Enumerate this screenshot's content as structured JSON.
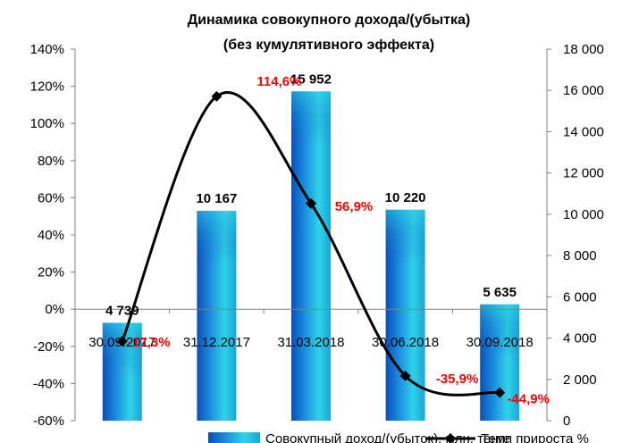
{
  "chart_data": {
    "type": "bar",
    "title_line1": "Динамика совокупного дохода/(убытка)",
    "title_line2": "(без кумулятивного эффекта)",
    "categories": [
      "30.09.2017",
      "31.12.2017",
      "31.03.2018",
      "30.06.2018",
      "30.09.2018"
    ],
    "bar_series": {
      "name": "Совокупный доход/(убыток), млн. тенге",
      "values": [
        4739,
        10167,
        15952,
        10220,
        5635
      ],
      "labels": [
        "4 739",
        "10 167",
        "15 952",
        "10 220",
        "5 635"
      ],
      "axis": "right",
      "color": "#1a6fd6"
    },
    "line_series": {
      "name": "Темп прироста %",
      "values": [
        -17.3,
        114.6,
        56.9,
        -35.9,
        -44.9
      ],
      "labels": [
        "-17,3%",
        "114,6%",
        "56,9%",
        "-35,9%",
        "-44,9%"
      ],
      "axis": "left",
      "color": "#000000",
      "label_color": "#ff0000"
    },
    "left_axis": {
      "ylim": [
        -60,
        140
      ],
      "ticks": [
        -60,
        -40,
        -20,
        0,
        20,
        40,
        60,
        80,
        100,
        120,
        140
      ],
      "tick_labels": [
        "-60%",
        "-40%",
        "-20%",
        "0%",
        "20%",
        "40%",
        "60%",
        "80%",
        "100%",
        "120%",
        "140%"
      ]
    },
    "right_axis": {
      "ylim": [
        0,
        18000
      ],
      "ticks": [
        0,
        2000,
        4000,
        6000,
        8000,
        10000,
        12000,
        14000,
        16000,
        18000
      ],
      "tick_labels": [
        "0",
        "2 000",
        "4 000",
        "6 000",
        "8 000",
        "10 000",
        "12 000",
        "14 000",
        "16 000",
        "18 000"
      ]
    },
    "grid": false,
    "legend_position": "bottom"
  }
}
